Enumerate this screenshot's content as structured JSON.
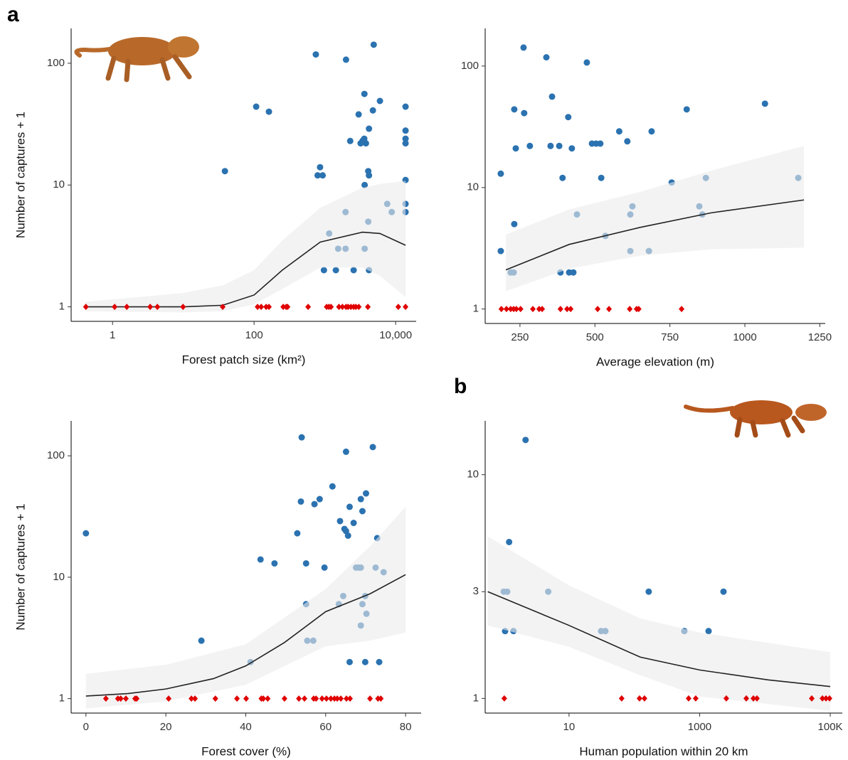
{
  "panel_labels": [
    "a",
    "b"
  ],
  "chart_data": [
    {
      "type": "scatter",
      "x_label": "Forest patch size (km²)",
      "y_label": "Number of captures + 1",
      "log_x": true,
      "log_y": true,
      "xlim": [
        0.26,
        19500
      ],
      "ylim": [
        0.76,
        193
      ],
      "xticks": [
        1,
        100,
        {
          "value": 10000,
          "label": "10,000"
        }
      ],
      "yticks": [
        1,
        10,
        100
      ],
      "series": [
        {
          "marker": "circle",
          "color": "#2b72b0",
          "x": [
            38.7,
            107,
            162,
            745,
            1990,
            4900,
            3620,
            4770,
            6000,
            13800,
            13800,
            13800,
            13800,
            3000,
            2280,
            3200,
            3400,
            3600,
            3800,
            4200,
            4100,
            4200,
            3650,
            855,
            790,
            930,
            13800,
            1150,
            1960,
            1540,
            1960,
            3650,
            4100,
            7600,
            8800,
            13800,
            13800,
            970,
            1430,
            2550,
            4200
          ],
          "y": [
            13,
            44,
            40,
            118,
            107,
            142,
            56,
            41,
            49,
            44,
            28,
            24,
            22,
            38,
            23,
            22,
            23,
            24,
            22,
            29,
            13,
            12,
            10,
            14,
            12,
            12,
            11,
            4,
            6,
            3,
            3,
            3,
            5,
            7,
            6,
            7,
            6,
            2,
            2,
            2,
            2
          ]
        },
        {
          "marker": "diamond",
          "color": "#e00000",
          "x": [
            0.42,
            1.07,
            1.59,
            3.4,
            4.3,
            9.9,
            36,
            112,
            126,
            148,
            162,
            258,
            284,
            297,
            580,
            1060,
            1140,
            1220,
            1580,
            1770,
            1990,
            2130,
            2330,
            2550,
            2740,
            3010,
            4050,
            10900,
            13800
          ],
          "y": [
            1,
            1,
            1,
            1,
            1,
            1,
            1,
            1,
            1,
            1,
            1,
            1,
            1,
            1,
            1,
            1,
            1,
            1,
            1,
            1,
            1,
            1,
            1,
            1,
            1,
            1,
            1,
            1,
            1
          ]
        }
      ],
      "fit": {
        "color": "#222222",
        "x": [
          0.42,
          10,
          36,
          100,
          250,
          860,
          3400,
          6000,
          13800
        ],
        "y": [
          1,
          1,
          1.03,
          1.25,
          2,
          3.4,
          4.1,
          4.0,
          3.2
        ]
      },
      "band": {
        "color": "#ebebeb",
        "x": [
          0.42,
          10,
          36,
          100,
          250,
          860,
          3400,
          6000,
          13800
        ],
        "lower": [
          0.92,
          0.9,
          0.92,
          1.05,
          1.4,
          2.1,
          2.1,
          1.8,
          1.2
        ],
        "upper": [
          1.1,
          1.3,
          1.5,
          2.0,
          3.5,
          6.5,
          9.5,
          10.2,
          10.8
        ]
      }
    },
    {
      "type": "scatter",
      "x_label": "Average elevation (m)",
      "log_x": false,
      "log_y": true,
      "xlim": [
        134,
        1268
      ],
      "ylim": [
        0.76,
        204
      ],
      "xticks": [
        250,
        500,
        750,
        1000,
        1250
      ],
      "yticks": [
        1,
        10,
        100
      ],
      "series": [
        {
          "marker": "circle",
          "color": "#2b72b0",
          "x": [
            262,
            338,
            473,
            357,
            231,
            264,
            806,
            1067,
            411,
            423,
            581,
            689,
            608,
            236,
            283,
            352,
            381,
            490,
            504,
            518,
            392,
            521,
            186,
            231,
            870,
            756,
            1178,
            848,
            625,
            440,
            618,
            858,
            535,
            186,
            618,
            680,
            219,
            229,
            385,
            414,
            428
          ],
          "y": [
            142,
            118,
            107,
            56,
            44,
            41,
            44,
            49,
            38,
            21,
            29,
            29,
            24,
            21,
            22,
            22,
            22,
            23,
            23,
            23,
            12,
            12,
            13,
            5,
            12,
            11,
            12,
            7,
            7,
            6,
            6,
            6,
            4,
            3,
            3,
            3,
            2,
            2,
            2,
            2,
            2
          ]
        },
        {
          "marker": "diamond",
          "color": "#e00000",
          "x": [
            188,
            205,
            219,
            229,
            238,
            252,
            293,
            314,
            324,
            385,
            407,
            419,
            509,
            547,
            616,
            639,
            646,
            789
          ],
          "y": [
            1,
            1,
            1,
            1,
            1,
            1,
            1,
            1,
            1,
            1,
            1,
            1,
            1,
            1,
            1,
            1,
            1,
            1
          ]
        }
      ],
      "fit": {
        "color": "#222222",
        "x": [
          203,
          414,
          651,
          889,
          1197
        ],
        "y": [
          2.1,
          3.4,
          4.7,
          6.2,
          7.9
        ]
      },
      "band": {
        "color": "#ebebeb",
        "x": [
          203,
          414,
          651,
          889,
          1197
        ],
        "lower": [
          1.4,
          2.15,
          2.75,
          3.1,
          3.2
        ],
        "upper": [
          4.1,
          6.6,
          9.2,
          13.8,
          22
        ]
      }
    },
    {
      "type": "scatter",
      "x_label": "Forest cover (%)",
      "y_label": "Number of captures + 1",
      "log_x": false,
      "log_y": true,
      "xlim": [
        -3.7,
        83.9
      ],
      "ylim": [
        0.76,
        194
      ],
      "xticks": [
        0,
        20,
        40,
        60,
        80
      ],
      "yticks": [
        1,
        10,
        100
      ],
      "series": [
        {
          "marker": "circle",
          "color": "#2b72b0",
          "x": [
            0,
            28.9,
            41.2,
            43.7,
            47.2,
            52.9,
            53.8,
            54.0,
            55.1,
            55.1,
            55.4,
            56.9,
            57.2,
            58.5,
            59.7,
            61.7,
            63.6,
            64.4,
            63.3,
            65.1,
            65.1,
            64.7,
            65.6,
            66.0,
            66.0,
            67.0,
            67.6,
            68.3,
            68.8,
            69.2,
            68.8,
            69.9,
            70.2,
            72.5,
            74.5,
            68.8,
            69.2,
            70.1,
            69.9,
            71.8,
            72.9,
            73.4
          ],
          "y": [
            23,
            3,
            2,
            14,
            13,
            23,
            42,
            142,
            13,
            6,
            3,
            3,
            40,
            44,
            12,
            56,
            29,
            7,
            6,
            108,
            24,
            25,
            22,
            38,
            2,
            28,
            12,
            12,
            12,
            6,
            4,
            7,
            5,
            12,
            11,
            44,
            35,
            49,
            2,
            118,
            21,
            2
          ]
        },
        {
          "marker": "diamond",
          "color": "#e00000",
          "x": [
            5.0,
            8.0,
            8.7,
            10.0,
            12.3,
            12.7,
            20.7,
            26.4,
            27.3,
            32.4,
            37.8,
            40.1,
            43.9,
            44.4,
            45.5,
            49.7,
            53.3,
            54.7,
            57.0,
            57.6,
            59.1,
            60.2,
            61.3,
            62.2,
            62.9,
            63.8,
            65.2,
            66.1,
            71.1,
            73.1,
            73.8
          ],
          "y": [
            1,
            1,
            1,
            1,
            1,
            1,
            1,
            1,
            1,
            1,
            1,
            1,
            1,
            1,
            1,
            1,
            1,
            1,
            1,
            1,
            1,
            1,
            1,
            1,
            1,
            1,
            1,
            1,
            1,
            1,
            1
          ]
        }
      ],
      "fit": {
        "color": "#222222",
        "x": [
          0,
          10.5,
          20,
          31.9,
          40,
          49.7,
          60,
          71.1,
          80
        ],
        "y": [
          1.05,
          1.1,
          1.2,
          1.46,
          1.86,
          2.9,
          5.2,
          7.3,
          10.5
        ]
      },
      "band": {
        "color": "#ebebeb",
        "x": [
          0,
          20,
          40,
          60,
          71.1,
          80
        ],
        "lower": [
          0.83,
          0.95,
          1.3,
          2.7,
          3.0,
          3.5
        ],
        "upper": [
          1.6,
          1.9,
          2.8,
          8,
          18,
          38
        ]
      }
    },
    {
      "type": "scatter",
      "x_label": "Human population within 20 km",
      "log_x": true,
      "log_y": true,
      "xlim": [
        0.52,
        153000
      ],
      "ylim": [
        0.86,
        17.4
      ],
      "xticks": [
        10,
        1000,
        {
          "value": 100000,
          "label": "100K"
        }
      ],
      "yticks": [
        1,
        3,
        10
      ],
      "series": [
        {
          "marker": "circle",
          "color": "#2b72b0",
          "x": [
            2.16,
            1.21,
            1.0,
            1.13,
            4.8,
            166,
            2320,
            1.05,
            1.41,
            31,
            36,
            583,
            1370
          ],
          "y": [
            14.3,
            5,
            3,
            3,
            3,
            3,
            3,
            2,
            2,
            2,
            2,
            2,
            2
          ]
        },
        {
          "marker": "diamond",
          "color": "#e00000",
          "x": [
            1.02,
            64,
            120,
            143,
            678,
            871,
            2560,
            5180,
            6650,
            7540,
            52100,
            75900,
            86100,
            97500
          ],
          "y": [
            1,
            1,
            1,
            1,
            1,
            1,
            1,
            1,
            1,
            1,
            1,
            1,
            1,
            1
          ]
        }
      ],
      "fit": {
        "color": "#222222",
        "x": [
          0.57,
          10,
          123,
          1000,
          11200,
          100000
        ],
        "y": [
          3,
          2.12,
          1.53,
          1.34,
          1.21,
          1.13
        ]
      },
      "band": {
        "color": "#ebebeb",
        "x": [
          0.57,
          10,
          123,
          1000,
          100000
        ],
        "lower": [
          2.12,
          1.7,
          1.27,
          1.02,
          0.88
        ],
        "upper": [
          5.3,
          3.2,
          2.28,
          1.97,
          1.61
        ]
      }
    }
  ]
}
